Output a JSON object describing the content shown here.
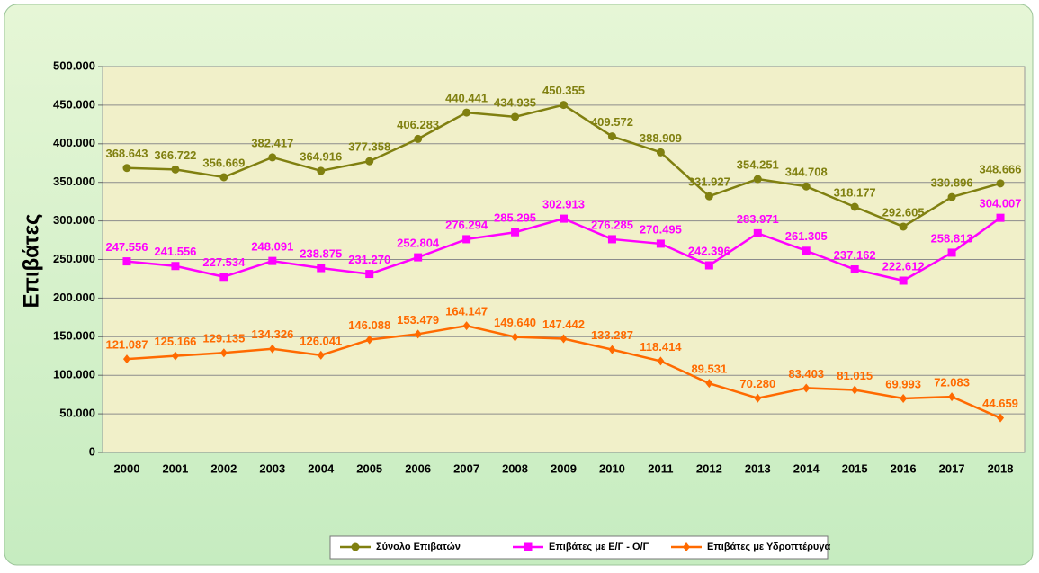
{
  "chart_data": {
    "type": "line",
    "y_label": "Επιβάτες",
    "categories": [
      "2000",
      "2001",
      "2002",
      "2003",
      "2004",
      "2005",
      "2006",
      "2007",
      "2008",
      "2009",
      "2010",
      "2011",
      "2012",
      "2013",
      "2014",
      "2015",
      "2016",
      "2017",
      "2018"
    ],
    "series": [
      {
        "name": "Σύνολο Επιβατών",
        "color": "#808010",
        "marker": "circle",
        "values": [
          368643,
          366722,
          356669,
          382417,
          364916,
          377358,
          406283,
          440441,
          434935,
          450355,
          409572,
          388909,
          331927,
          354251,
          344708,
          318177,
          292605,
          330896,
          348666
        ],
        "value_labels": [
          "368.643",
          "366.722",
          "356.669",
          "382.417",
          "364.916",
          "377.358",
          "406.283",
          "440.441",
          "434.935",
          "450.355",
          "409.572",
          "388.909",
          "331.927",
          "354.251",
          "344.708",
          "318.177",
          "292.605",
          "330.896",
          "348.666"
        ]
      },
      {
        "name": "Επιβάτες με Ε/Γ - Ο/Γ",
        "color": "#ff00ff",
        "marker": "square",
        "values": [
          247556,
          241556,
          227534,
          248091,
          238875,
          231270,
          252804,
          276294,
          285295,
          302913,
          276285,
          270495,
          242396,
          283971,
          261305,
          237162,
          222612,
          258813,
          304007
        ],
        "value_labels": [
          "247.556",
          "241.556",
          "227.534",
          "248.091",
          "238.875",
          "231.270",
          "252.804",
          "276.294",
          "285.295",
          "302.913",
          "276.285",
          "270.495",
          "242.396",
          "283.971",
          "261.305",
          "237.162",
          "222.612",
          "258.813",
          "304.007"
        ]
      },
      {
        "name": "Επιβάτες με Υδροπτέρυγα",
        "color": "#ff6a00",
        "marker": "diamond",
        "values": [
          121087,
          125166,
          129135,
          134326,
          126041,
          146088,
          153479,
          164147,
          149640,
          147442,
          133287,
          118414,
          89531,
          70280,
          83403,
          81015,
          69993,
          72083,
          44659
        ],
        "value_labels": [
          "121.087",
          "125.166",
          "129.135",
          "134.326",
          "126.041",
          "146.088",
          "153.479",
          "164.147",
          "149.640",
          "147.442",
          "133.287",
          "118.414",
          "89.531",
          "70.280",
          "83.403",
          "81.015",
          "69.993",
          "72.083",
          "44.659"
        ]
      }
    ],
    "ylim": [
      0,
      500000
    ],
    "yticks": [
      0,
      {
        "value": 50000,
        "label": "50.000"
      },
      {
        "value": 100000,
        "label": "100.000"
      },
      {
        "value": 150000,
        "label": "150.000"
      },
      {
        "value": 200000,
        "label": "200.000"
      },
      {
        "value": 250000,
        "label": "250.000"
      },
      {
        "value": 300000,
        "label": "300.000"
      },
      {
        "value": 350000,
        "label": "350.000"
      },
      {
        "value": 400000,
        "label": "400.000"
      },
      {
        "value": 450000,
        "label": "450.000"
      },
      {
        "value": 500000,
        "label": "500.000"
      }
    ],
    "grid": true,
    "legend": "bottom"
  }
}
